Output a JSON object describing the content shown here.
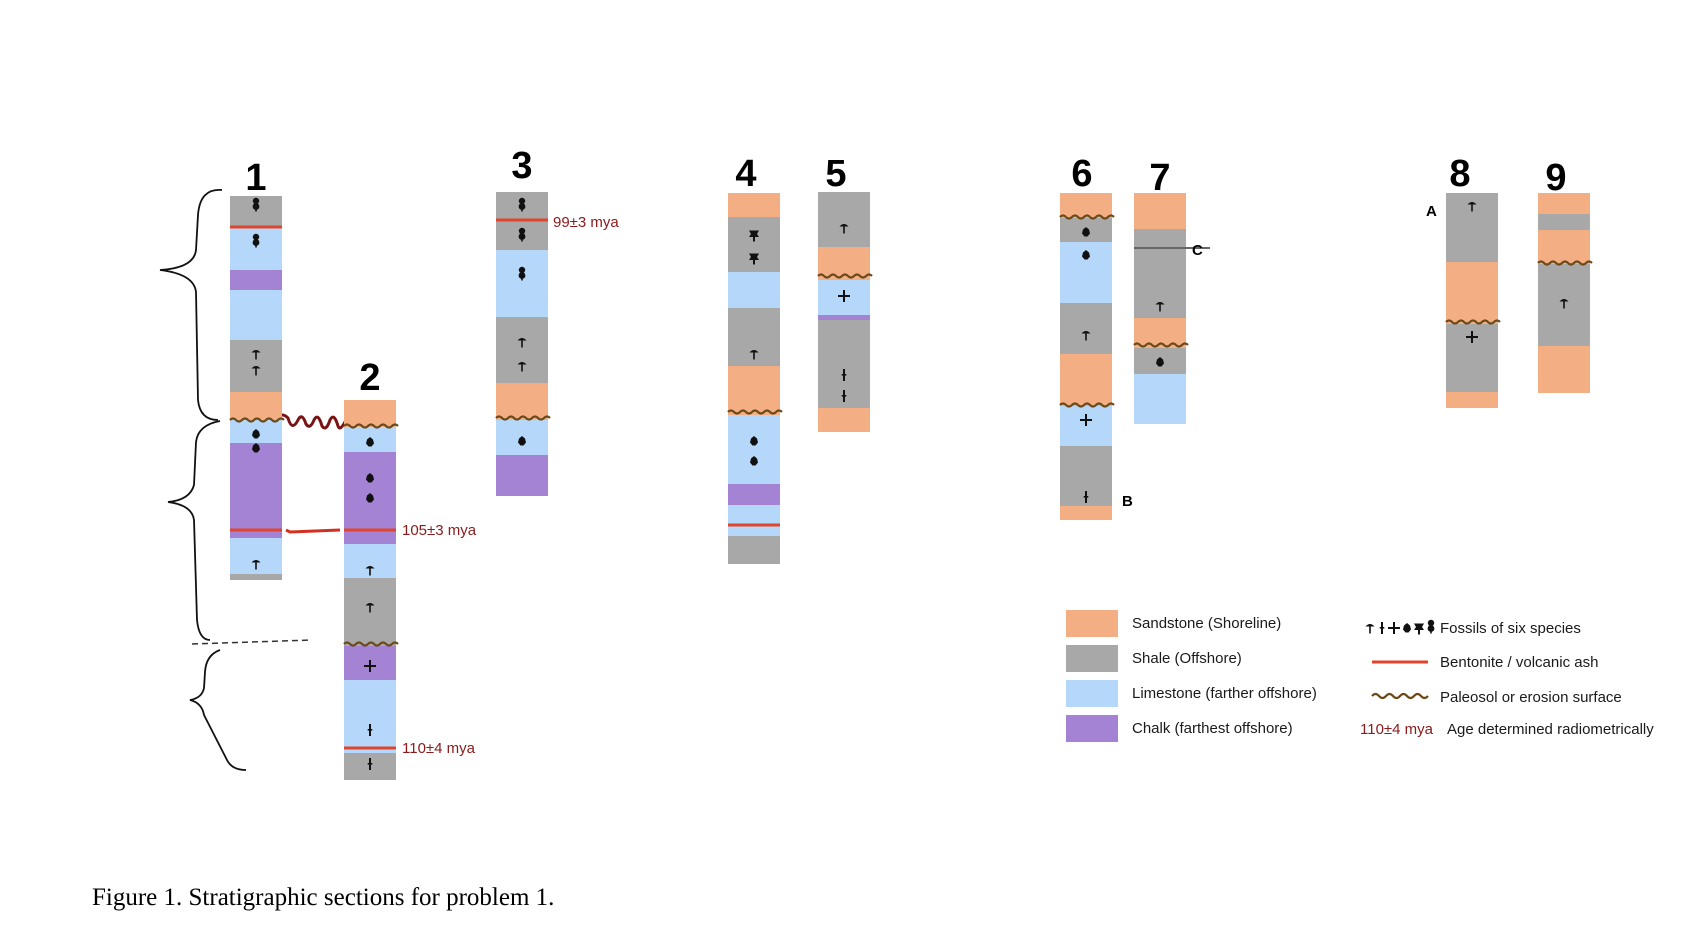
{
  "colors": {
    "sandstone": "#f4ae84",
    "shale": "#a8a8a8",
    "limestone": "#b5d8fa",
    "chalk": "#a583d4",
    "bentonite": "#e0442c",
    "paleosol": "#6b4a1a",
    "age_text": "#8b1a1a"
  },
  "columns": [
    {
      "number": "1",
      "layers": [
        "shale",
        "limestone",
        "chalk",
        "limestone",
        "shale",
        "sandstone",
        "limestone",
        "chalk",
        "limestone",
        "shale"
      ],
      "fossils": [
        "species-5",
        "species-5",
        "species-1",
        "species-1",
        "species-4",
        "species-4",
        "species-6"
      ]
    },
    {
      "number": "2",
      "layers": [
        "sandstone",
        "limestone",
        "chalk",
        "limestone",
        "shale",
        "chalk",
        "limestone",
        "shale"
      ],
      "fossils": [
        "species-4",
        "species-4",
        "species-4",
        "species-6",
        "species-6",
        "species-3",
        "species-2",
        "species-2"
      ],
      "ages": [
        "105±3 mya",
        "110±4 mya"
      ]
    },
    {
      "number": "3",
      "layers": [
        "shale",
        "limestone",
        "shale",
        "sandstone",
        "limestone",
        "chalk"
      ],
      "fossils": [
        "species-5",
        "species-5",
        "species-5",
        "species-1",
        "species-1",
        "species-4"
      ],
      "ages": [
        "99±3 mya"
      ]
    },
    {
      "number": "4",
      "layers": [
        "sandstone",
        "shale",
        "limestone",
        "shale",
        "sandstone",
        "limestone",
        "chalk",
        "limestone",
        "shale"
      ],
      "fossils": [
        "species-5",
        "species-5",
        "species-6",
        "species-4",
        "species-4"
      ]
    },
    {
      "number": "5",
      "layers": [
        "shale",
        "sandstone",
        "limestone",
        "chalk",
        "shale",
        "sandstone"
      ],
      "fossils": [
        "species-6",
        "species-3",
        "species-2",
        "species-2"
      ]
    },
    {
      "number": "6",
      "layers": [
        "sandstone",
        "shale",
        "limestone",
        "shale",
        "sandstone",
        "limestone",
        "shale",
        "sandstone"
      ],
      "fossils": [
        "species-4",
        "species-4",
        "species-6",
        "species-3",
        "species-2"
      ],
      "letters": [
        "B"
      ]
    },
    {
      "number": "7",
      "layers": [
        "sandstone",
        "shale",
        "shale",
        "sandstone",
        "shale",
        "limestone"
      ],
      "fossils": [
        "species-6",
        "species-4"
      ],
      "letters": [
        "C"
      ]
    },
    {
      "number": "8",
      "layers": [
        "shale",
        "sandstone",
        "shale",
        "sandstone"
      ],
      "fossils": [
        "species-6",
        "species-3"
      ],
      "letters": [
        "A"
      ]
    },
    {
      "number": "9",
      "layers": [
        "sandstone",
        "shale",
        "sandstone",
        "shale",
        "sandstone"
      ],
      "fossils": [
        "species-6"
      ]
    }
  ],
  "legend": {
    "rock_types": [
      {
        "label": "Sandstone (Shoreline)",
        "key": "sandstone"
      },
      {
        "label": "Shale (Offshore)",
        "key": "shale"
      },
      {
        "label": "Limestone (farther offshore)",
        "key": "limestone"
      },
      {
        "label": "Chalk (farthest offshore)",
        "key": "chalk"
      }
    ],
    "symbols": [
      {
        "label": "Fossils of six species",
        "icon": "fossil-species-icons"
      },
      {
        "label": "Bentonite / volcanic ash",
        "icon": "bentonite-line-icon"
      },
      {
        "label": "Paleosol or erosion surface",
        "icon": "paleosol-wavy-line-icon"
      },
      {
        "label": "Age determined radiometrically",
        "prefix": "110±4 mya"
      }
    ]
  },
  "caption": "Figure 1. Stratigraphic sections for problem 1."
}
